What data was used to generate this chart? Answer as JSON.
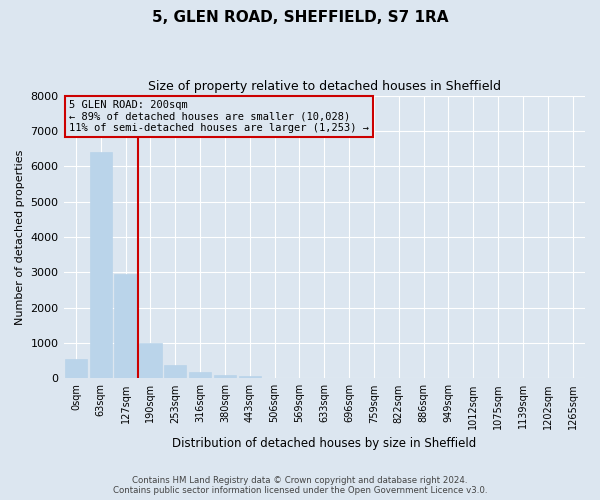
{
  "title": "5, GLEN ROAD, SHEFFIELD, S7 1RA",
  "subtitle": "Size of property relative to detached houses in Sheffield",
  "xlabel": "Distribution of detached houses by size in Sheffield",
  "ylabel": "Number of detached properties",
  "bar_labels": [
    "0sqm",
    "63sqm",
    "127sqm",
    "190sqm",
    "253sqm",
    "316sqm",
    "380sqm",
    "443sqm",
    "506sqm",
    "569sqm",
    "633sqm",
    "696sqm",
    "759sqm",
    "822sqm",
    "886sqm",
    "949sqm",
    "1012sqm",
    "1075sqm",
    "1139sqm",
    "1202sqm",
    "1265sqm"
  ],
  "bar_values": [
    560,
    6400,
    2950,
    1000,
    390,
    175,
    95,
    65,
    0,
    0,
    0,
    0,
    0,
    0,
    0,
    0,
    0,
    0,
    0,
    0,
    0
  ],
  "bar_color": "#bad4ea",
  "bar_edge_color": "#bad4ea",
  "vline_color": "#cc0000",
  "annotation_title": "5 GLEN ROAD: 200sqm",
  "annotation_line1": "← 89% of detached houses are smaller (10,028)",
  "annotation_line2": "11% of semi-detached houses are larger (1,253) →",
  "annotation_box_color": "#cc0000",
  "ylim": [
    0,
    8000
  ],
  "yticks": [
    0,
    1000,
    2000,
    3000,
    4000,
    5000,
    6000,
    7000,
    8000
  ],
  "bg_color": "#dce6f0",
  "grid_color": "#ffffff",
  "footer_line1": "Contains HM Land Registry data © Crown copyright and database right 2024.",
  "footer_line2": "Contains public sector information licensed under the Open Government Licence v3.0."
}
